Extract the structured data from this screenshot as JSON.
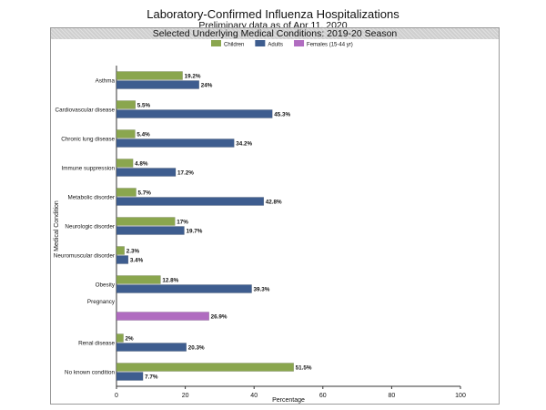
{
  "title": "Laboratory-Confirmed Influenza Hospitalizations",
  "subtitle": "Preliminary data as of Apr 11, 2020",
  "panel_title": "Selected Underlying Medical Conditions: 2019-20 Season",
  "colors": {
    "children": "#8aa64e",
    "adults": "#3e5d8f",
    "females": "#b06cc0"
  },
  "chart_data": {
    "type": "bar",
    "orientation": "horizontal",
    "title": "Selected Underlying Medical Conditions: 2019-20 Season",
    "xlabel": "Percentage",
    "ylabel": "Medical Condition",
    "xlim": [
      0,
      100
    ],
    "x_ticks": [
      "0",
      "20",
      "40",
      "60",
      "80",
      "100"
    ],
    "legend_position": "top",
    "legend": [
      {
        "name": "Children",
        "color": "#8aa64e"
      },
      {
        "name": "Adults",
        "color": "#3e5d8f"
      },
      {
        "name": "Females (15-44 yr)",
        "color": "#b06cc0"
      }
    ],
    "categories": [
      "Asthma",
      "Cardiovascular disease",
      "Chronic lung disease",
      "Immune suppression",
      "Metabolic disorder",
      "Neurologic disorder",
      "Neuromuscular disorder",
      "Obesity",
      "Pregnancy",
      "Renal disease",
      "No known condition"
    ],
    "series": [
      {
        "name": "Children",
        "values": [
          19.2,
          5.5,
          5.4,
          4.8,
          5.7,
          17,
          2.3,
          12.8,
          null,
          2,
          51.5
        ],
        "labels": [
          "19.2%",
          "5.5%",
          "5.4%",
          "4.8%",
          "5.7%",
          "17%",
          "2.3%",
          "12.8%",
          null,
          "2%",
          "51.5%"
        ]
      },
      {
        "name": "Adults",
        "values": [
          24,
          45.3,
          34.2,
          17.2,
          42.8,
          19.7,
          3.4,
          39.3,
          null,
          20.3,
          7.7
        ],
        "labels": [
          "24%",
          "45.3%",
          "34.2%",
          "17.2%",
          "42.8%",
          "19.7%",
          "3.4%",
          "39.3%",
          null,
          "20.3%",
          "7.7%"
        ]
      },
      {
        "name": "Females (15-44 yr)",
        "values": [
          null,
          null,
          null,
          null,
          null,
          null,
          null,
          null,
          26.9,
          null,
          null
        ],
        "labels": [
          null,
          null,
          null,
          null,
          null,
          null,
          null,
          null,
          "26.9%",
          null,
          null
        ]
      }
    ]
  }
}
